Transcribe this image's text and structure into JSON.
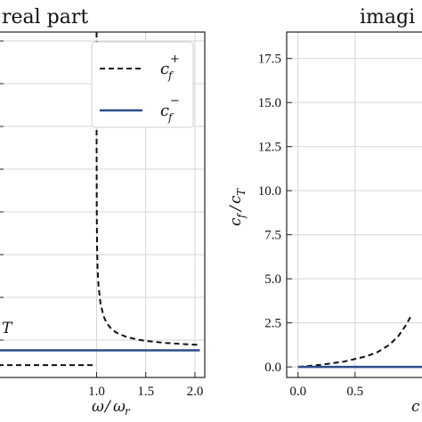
{
  "chart_data": [
    {
      "type": "line",
      "title": "real part",
      "xlabel": "ω/ω_r",
      "ylabel": "",
      "xlim": [
        0.0,
        2.1
      ],
      "ylim": [
        -0.05,
        1.35
      ],
      "xticks": [
        "1.0",
        "1.5",
        "2.0"
      ],
      "xtick_values": [
        1.0,
        1.5,
        2.0
      ],
      "grid": true,
      "legend": {
        "position": "top-right",
        "entries": [
          {
            "label": "c_f^+",
            "style": "dashed",
            "color": "#111111"
          },
          {
            "label": "c_f^-",
            "style": "solid",
            "color": "#2b4c8c"
          }
        ]
      },
      "annotation": "T",
      "series": [
        {
          "name": "c_f^+",
          "style": "dashed",
          "color": "#111111",
          "segments": [
            {
              "x": [
                0.0,
                0.5,
                0.9,
                0.99
              ],
              "y": [
                0.0,
                0.0,
                0.0,
                0.0
              ]
            },
            {
              "x": [
                1.0,
                1.0,
                1.002,
                1.005,
                1.01,
                1.02,
                1.04,
                1.07,
                1.1,
                1.15,
                1.2,
                1.3,
                1.4,
                1.5,
                1.7,
                1.9,
                2.05
              ],
              "y": [
                1.35,
                0.99,
                0.63,
                0.48,
                0.39,
                0.32,
                0.25,
                0.2,
                0.172,
                0.147,
                0.132,
                0.115,
                0.105,
                0.098,
                0.09,
                0.085,
                0.082
              ]
            }
          ]
        },
        {
          "name": "c_f^-",
          "style": "solid",
          "color": "#2b4c8c",
          "segments": [
            {
              "x": [
                0.0,
                2.05
              ],
              "y": [
                0.06,
                0.06
              ]
            }
          ]
        }
      ]
    },
    {
      "type": "line",
      "title": "imagi",
      "xlabel": "c",
      "ylabel": "c_f / c_T",
      "xlim": [
        -0.1,
        1.15
      ],
      "ylim": [
        -0.6,
        19.0
      ],
      "xticks": [
        "0.0",
        "0.5"
      ],
      "xtick_values": [
        0.0,
        0.5
      ],
      "yticks": [
        "0.0",
        "2.5",
        "5.0",
        "7.5",
        "10.0",
        "12.5",
        "15.0",
        "17.5"
      ],
      "ytick_values": [
        0.0,
        2.5,
        5.0,
        7.5,
        10.0,
        12.5,
        15.0,
        17.5
      ],
      "grid": true,
      "series": [
        {
          "name": "c_f^+",
          "style": "dashed",
          "color": "#111111",
          "segments": [
            {
              "x": [
                0.0,
                0.2,
                0.4,
                0.6,
                0.7,
                0.8,
                0.88,
                0.95,
                1.0
              ],
              "y": [
                0.0,
                0.12,
                0.3,
                0.6,
                0.85,
                1.25,
                1.75,
                2.4,
                3.0
              ]
            }
          ]
        },
        {
          "name": "c_f^-",
          "style": "solid",
          "color": "#2b4c8c",
          "segments": [
            {
              "x": [
                0.0,
                1.15
              ],
              "y": [
                0.0,
                0.0
              ]
            }
          ]
        }
      ]
    }
  ],
  "left_panel": {
    "title": "real part",
    "xlabel_main": "ω",
    "xlabel_slash": "/",
    "xlabel_denom": "ω",
    "xlabel_sub": "r",
    "annotation": "T"
  },
  "right_panel": {
    "title": "imagi",
    "ylabel_c1": "c",
    "ylabel_sub1": "f",
    "ylabel_slash": "/",
    "ylabel_c2": "c",
    "ylabel_sub2": "T",
    "xlabel": "c"
  },
  "legend": {
    "plus_base": "c",
    "plus_sub": "f",
    "plus_sup": "+",
    "minus_base": "c",
    "minus_sub": "f",
    "minus_sup": "−"
  }
}
